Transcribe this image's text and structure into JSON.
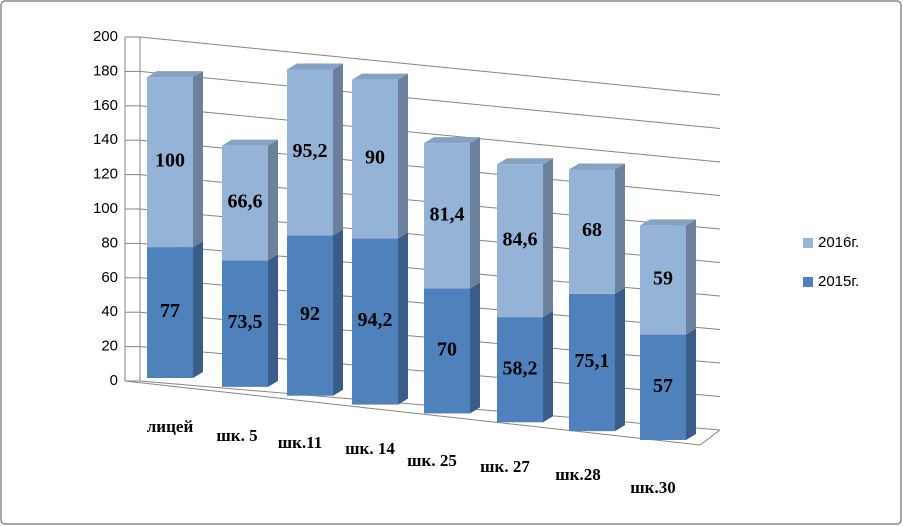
{
  "chart_data": {
    "type": "bar3d_stacked",
    "categories": [
      "лицей",
      "шк. 5",
      "шк.11",
      "шк. 14",
      "шк. 25",
      "шк. 27",
      "шк.28",
      "шк.30"
    ],
    "series": [
      {
        "name": "2015г.",
        "color": "#4f81bd",
        "values": [
          77,
          73.5,
          92,
          94.2,
          70,
          58.2,
          75.1,
          57
        ],
        "value_labels": [
          "77",
          "73,5",
          "92",
          "94,2",
          "70",
          "58,2",
          "75,1",
          "57"
        ]
      },
      {
        "name": "2016г.",
        "color": "#95b3d7",
        "values": [
          100,
          66.6,
          95.2,
          90,
          81.4,
          84.6,
          68,
          59
        ],
        "value_labels": [
          "100",
          "66,6",
          "95,2",
          "90",
          "81,4",
          "84,6",
          "68",
          "59"
        ]
      }
    ],
    "ylim": [
      0,
      200
    ],
    "yticks": [
      0,
      20,
      40,
      60,
      80,
      100,
      120,
      140,
      160,
      180,
      200
    ],
    "grid": true,
    "legend": "right"
  }
}
